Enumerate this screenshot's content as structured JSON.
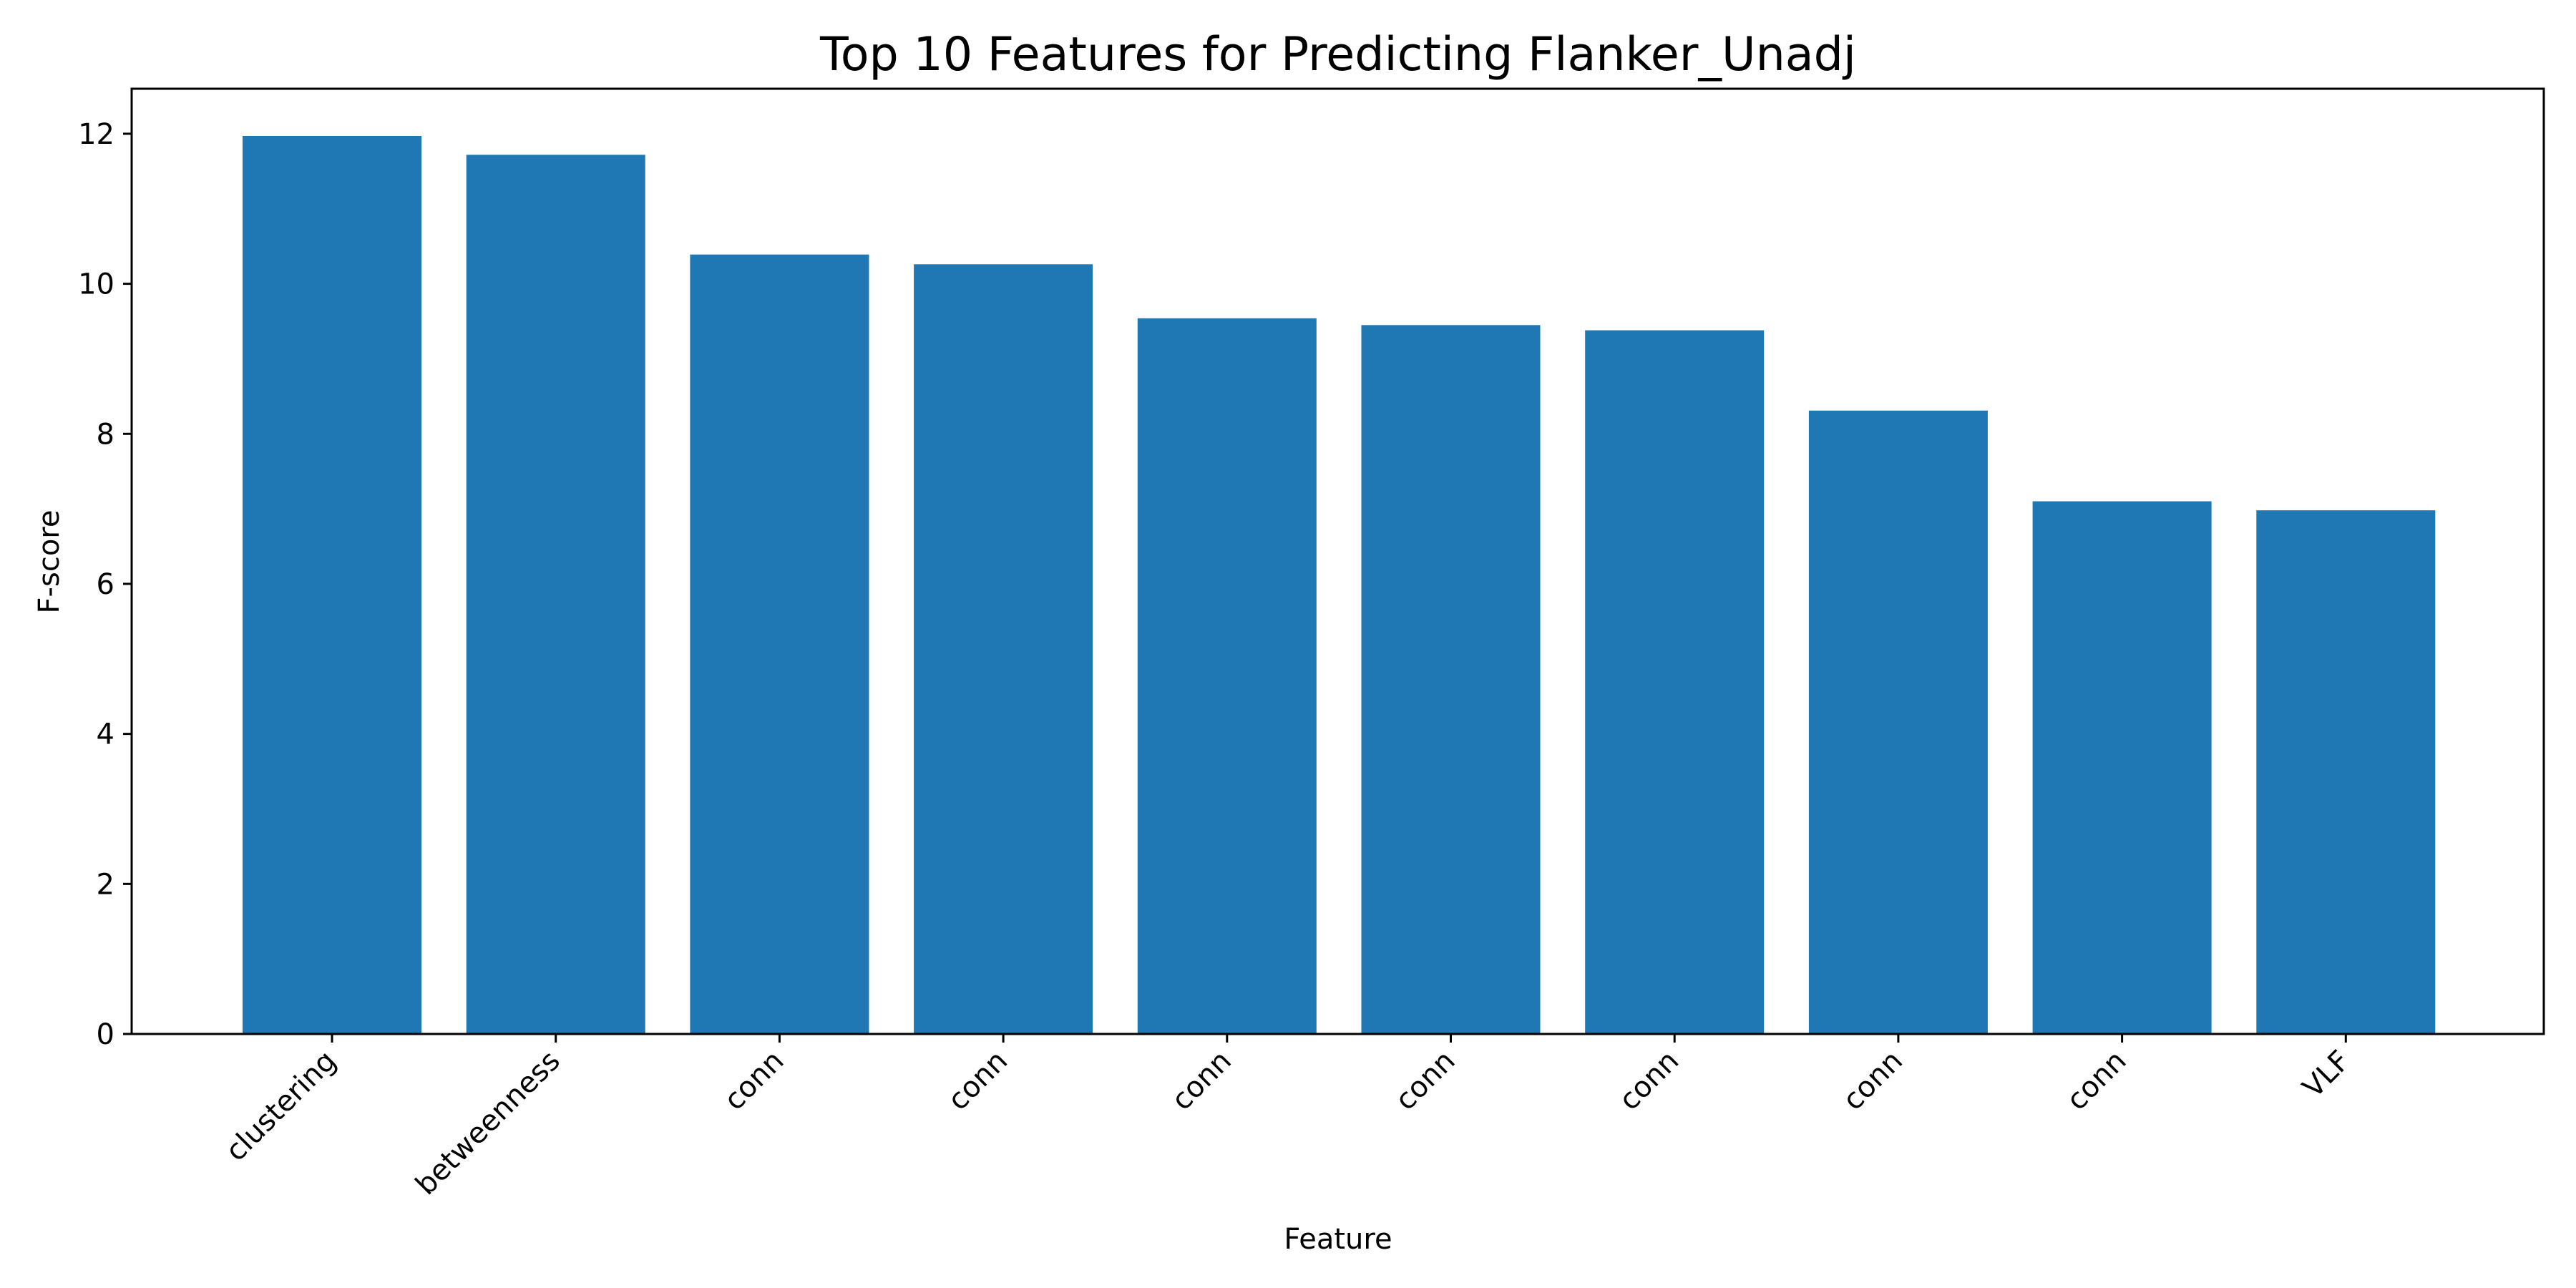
{
  "chart_data": {
    "type": "bar",
    "title": "Top 10 Features for Predicting Flanker_Unadj",
    "xlabel": "Feature",
    "ylabel": "F-score",
    "categories": [
      "clustering",
      "betweenness",
      "conn",
      "conn",
      "conn",
      "conn",
      "conn",
      "conn",
      "conn",
      "VLF"
    ],
    "values": [
      11.97,
      11.72,
      10.39,
      10.26,
      9.54,
      9.45,
      9.38,
      8.31,
      7.1,
      6.98
    ],
    "ylim": [
      0,
      12.6
    ],
    "yticks": [
      0,
      2,
      4,
      6,
      8,
      10,
      12
    ],
    "grid": false,
    "bar_color": "#1f77b4"
  }
}
